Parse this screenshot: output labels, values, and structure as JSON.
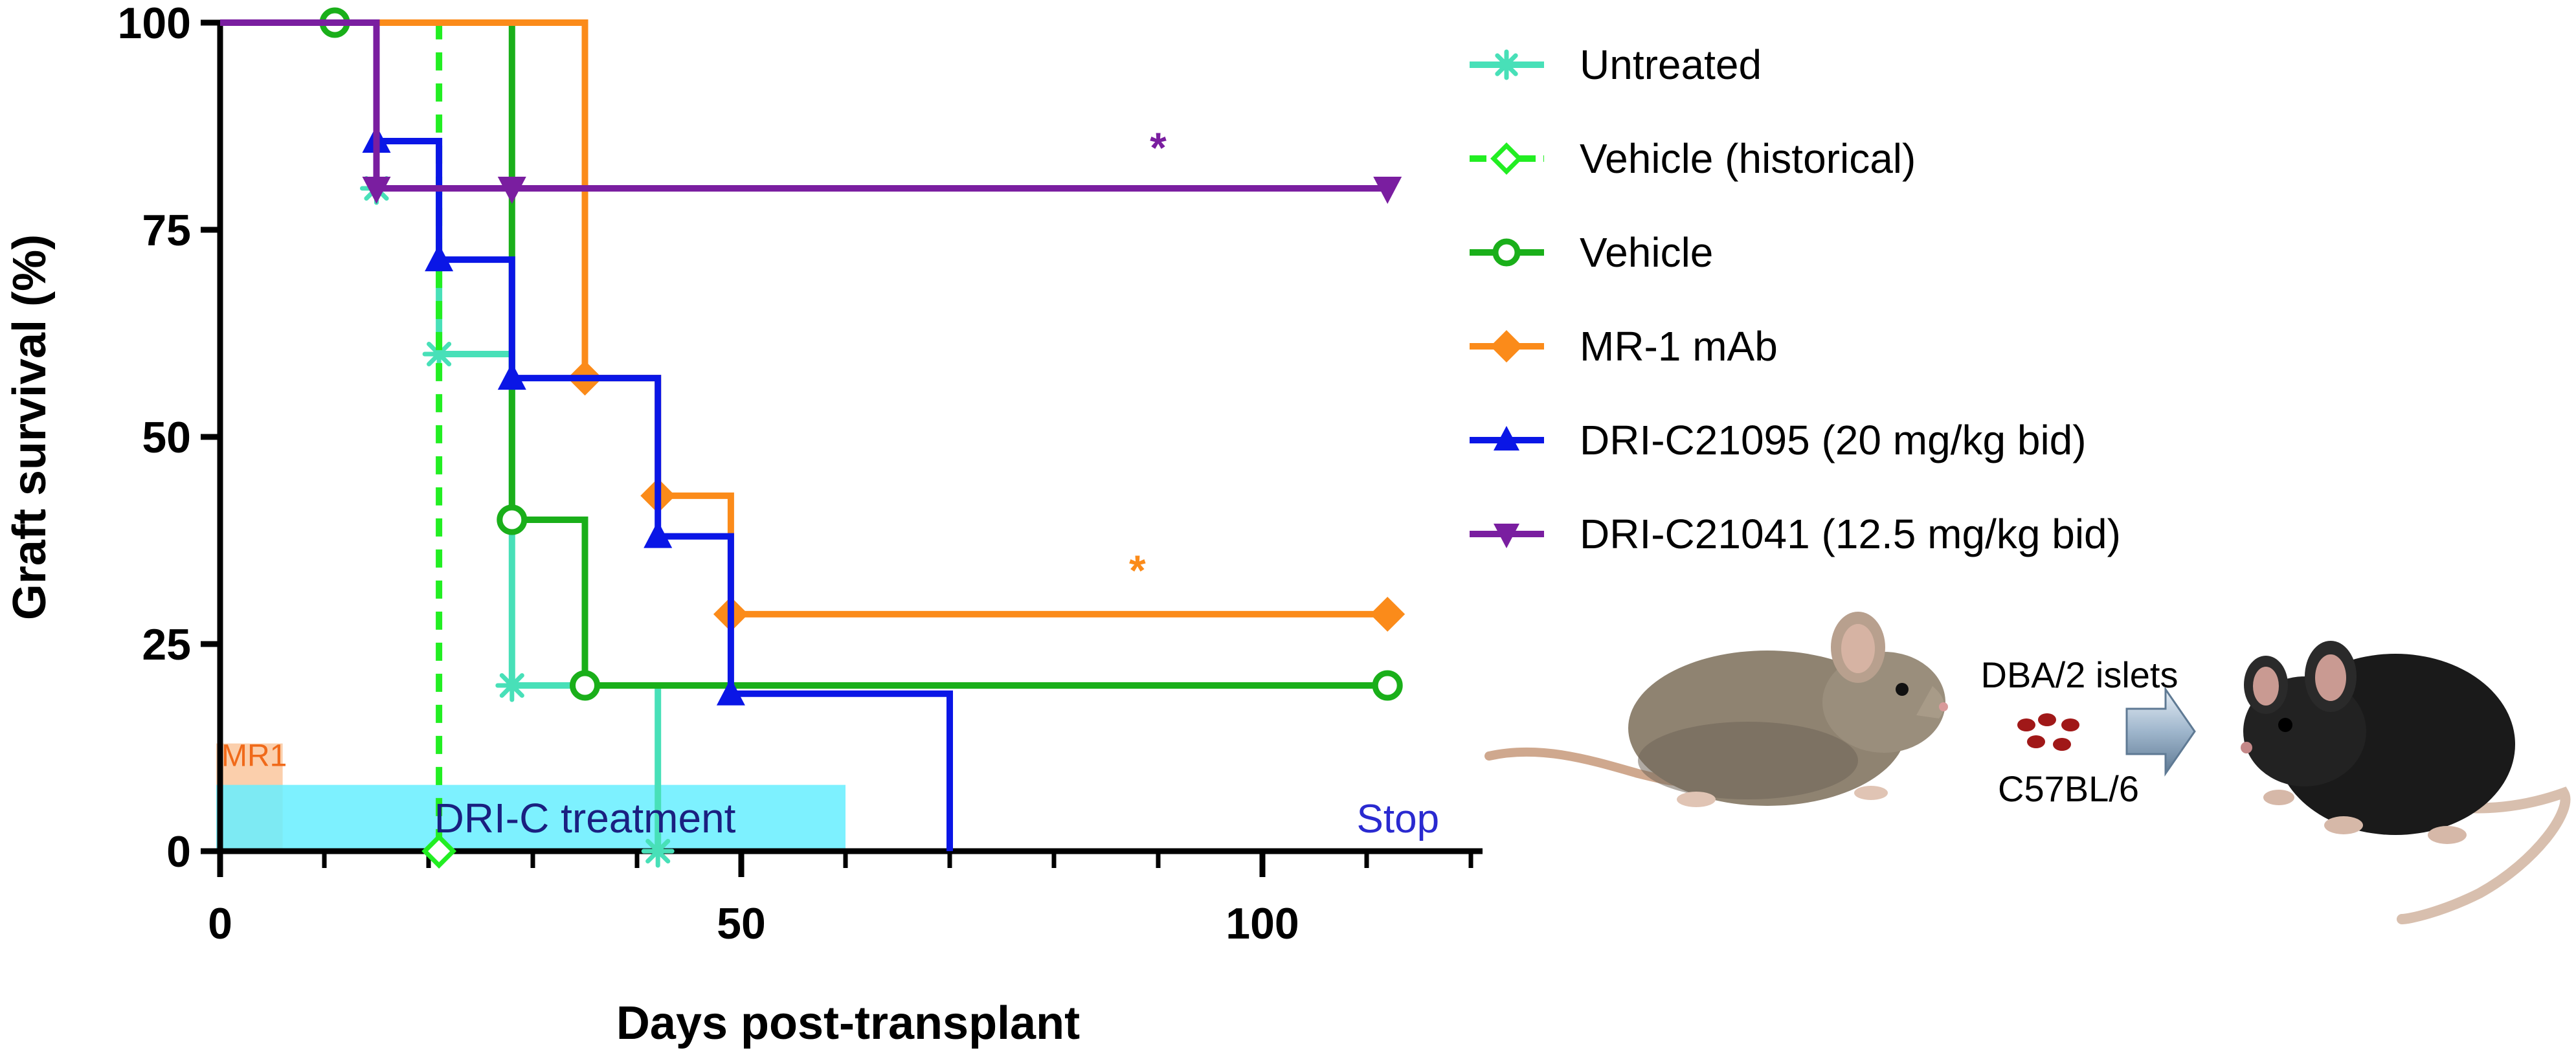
{
  "chart_data": {
    "type": "line",
    "subtype": "kaplan-meier step survival",
    "xlabel": "Days post-transplant",
    "ylabel": "Graft survival (%)",
    "xlim": [
      0,
      120
    ],
    "ylim": [
      0,
      100
    ],
    "xticks": [
      0,
      50,
      100
    ],
    "xtick_labels": [
      "0",
      "50",
      "100"
    ],
    "xminor": [
      10,
      20,
      30,
      40,
      60,
      70,
      80,
      90,
      110,
      120
    ],
    "yticks": [
      0,
      25,
      50,
      75,
      100
    ],
    "ytick_labels": [
      "0",
      "25",
      "50",
      "75",
      "100"
    ],
    "legend_position": "right",
    "series": [
      {
        "name": "Untreated",
        "color": "#48e0b8",
        "marker": "asterisk",
        "dash": false,
        "steps": [
          [
            0,
            100
          ],
          [
            15,
            80
          ],
          [
            21,
            60
          ],
          [
            28,
            20
          ],
          [
            42,
            0
          ]
        ],
        "markers": [
          [
            15,
            80
          ],
          [
            21,
            60
          ],
          [
            28,
            20
          ],
          [
            42,
            0
          ]
        ]
      },
      {
        "name": "Vehicle (historical)",
        "color": "#22ee22",
        "marker": "diamond-open",
        "dash": true,
        "steps": [
          [
            0,
            100
          ],
          [
            21,
            0
          ]
        ],
        "markers": [
          [
            21,
            0
          ]
        ]
      },
      {
        "name": "Vehicle",
        "color": "#1aaf1a",
        "marker": "circle-open",
        "dash": false,
        "steps": [
          [
            0,
            100
          ],
          [
            28,
            40
          ],
          [
            35,
            20
          ],
          [
            112,
            20
          ]
        ],
        "markers": [
          [
            11,
            100
          ],
          [
            28,
            40
          ],
          [
            35,
            20
          ],
          [
            112,
            20
          ]
        ]
      },
      {
        "name": "MR-1 mAb",
        "color": "#fb8b1a",
        "marker": "diamond",
        "dash": false,
        "steps": [
          [
            0,
            100
          ],
          [
            35,
            57.1
          ],
          [
            42,
            42.9
          ],
          [
            49,
            28.6
          ],
          [
            112,
            28.6
          ]
        ],
        "markers": [
          [
            35,
            57.1
          ],
          [
            42,
            42.9
          ],
          [
            49,
            28.6
          ],
          [
            112,
            28.6
          ]
        ]
      },
      {
        "name": "DRI-C21095 (20 mg/kg bid)",
        "color": "#0a16e6",
        "marker": "triangle",
        "dash": false,
        "steps": [
          [
            0,
            100
          ],
          [
            15,
            85.7
          ],
          [
            21,
            71.4
          ],
          [
            28,
            57.1
          ],
          [
            42,
            38
          ],
          [
            49,
            19
          ],
          [
            70,
            0
          ]
        ],
        "markers": [
          [
            15,
            85.7
          ],
          [
            21,
            71.4
          ],
          [
            28,
            57.1
          ],
          [
            42,
            38
          ],
          [
            49,
            19
          ]
        ]
      },
      {
        "name": "DRI-C21041 (12.5 mg/kg bid)",
        "color": "#7a1ea0",
        "marker": "triangle-down",
        "dash": false,
        "steps": [
          [
            0,
            100
          ],
          [
            15,
            80
          ],
          [
            112,
            80
          ]
        ],
        "markers": [
          [
            15,
            80
          ],
          [
            28,
            80
          ],
          [
            112,
            80
          ]
        ]
      }
    ],
    "annotations": [
      {
        "text": "*",
        "x": 90,
        "y": 85,
        "color": "#7a1ea0"
      },
      {
        "text": "*",
        "x": 88,
        "y": 34,
        "color": "#fb8b1a"
      },
      {
        "text": "MR1",
        "x": 0,
        "y": 12,
        "color": "#f06a1a"
      },
      {
        "text": "DRI-C treatment",
        "x": 35,
        "y": 4,
        "color": "#1a2080"
      },
      {
        "text": "Stop",
        "x": 113,
        "y": 4,
        "color": "#2a2ad0"
      }
    ],
    "treatment_bars": [
      {
        "label": "MR1",
        "x0": 0,
        "x1": 6,
        "color": "#f8a868"
      },
      {
        "label": "DRI-C treatment",
        "x0": 0,
        "x1": 60,
        "color": "#66eeff"
      }
    ]
  },
  "inset": {
    "islets_label": "DBA/2 islets",
    "recipient_label": "C57BL/6"
  }
}
